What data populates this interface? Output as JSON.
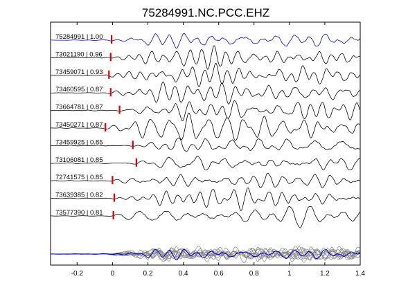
{
  "chart_data": {
    "type": "line",
    "title": "75284991.NC.PCC.EHZ",
    "xlabel": "",
    "ylabel": "",
    "xlim": [
      -0.35,
      1.4
    ],
    "xticks": [
      -0.2,
      0,
      0.2,
      0.4,
      0.6,
      0.8,
      1,
      1.2,
      1.4
    ],
    "xtick_labels": [
      "-0.2",
      "0",
      "0.2",
      "0.4",
      "0.6",
      "0.8",
      "1",
      "1.2",
      "1.4"
    ],
    "grid": false,
    "legend": "none",
    "colors": {
      "reference_trace": "#0000cc",
      "other_traces": "#000000",
      "pick_marker": "#dd0000",
      "stack_traces": "#808080",
      "stack_reference": "#0000cc"
    },
    "series": [
      {
        "name": "75284991 | 1.00",
        "pick_time": -0.005
      },
      {
        "name": "73021190 | 0.96",
        "pick_time": -0.01
      },
      {
        "name": "73459071 | 0.93",
        "pick_time": -0.02
      },
      {
        "name": "73460595 | 0.87",
        "pick_time": -0.01
      },
      {
        "name": "73664781 | 0.87",
        "pick_time": 0.04
      },
      {
        "name": "73450271 | 0.87",
        "pick_time": -0.04
      },
      {
        "name": "73459925 | 0.85",
        "pick_time": 0.115
      },
      {
        "name": "73106081 | 0.85",
        "pick_time": 0.135
      },
      {
        "name": "72741575 | 0.85",
        "pick_time": 0.0
      },
      {
        "name": "73639385 | 0.82",
        "pick_time": 0.01
      },
      {
        "name": "73577390 | 0.81",
        "pick_time": 0.005
      }
    ],
    "stack": {
      "trace_count": 11
    }
  }
}
